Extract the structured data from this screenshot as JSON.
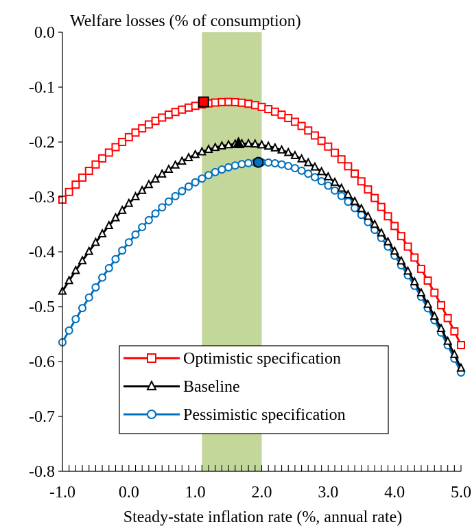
{
  "chart_data": {
    "type": "line",
    "title": "Welfare losses (% of consumption)",
    "xlabel": "Steady-state inflation rate (%, annual rate)",
    "ylabel": "",
    "xlim": [
      -1.0,
      5.0
    ],
    "ylim": [
      -0.8,
      0.0
    ],
    "x_ticks": [
      "-1.0",
      "0.0",
      "1.0",
      "2.0",
      "3.0",
      "4.0",
      "5.0"
    ],
    "y_ticks": [
      "0.0",
      "-0.1",
      "-0.2",
      "-0.3",
      "-0.4",
      "-0.5",
      "-0.6",
      "-0.7",
      "-0.8"
    ],
    "shaded_band": {
      "x_start": 1.1,
      "x_end": 2.0,
      "color": "#c4d79b"
    },
    "legend_position": "center-bottom",
    "grid": false,
    "series": [
      {
        "name": "Optimistic specification",
        "color": "#ff0000",
        "marker": "square",
        "peak": {
          "x": 1.5,
          "y": -0.127
        },
        "endpoints": {
          "x_start": -1.0,
          "y_start": -0.305,
          "x_end": 5.0,
          "y_end": -0.57
        },
        "highlight": {
          "x": 1.125,
          "y": -0.127,
          "fill": "#ff0000"
        }
      },
      {
        "name": "Baseline",
        "color": "#000000",
        "marker": "triangle",
        "peak": {
          "x": 1.75,
          "y": -0.203
        },
        "endpoints": {
          "x_start": -1.0,
          "y_start": -0.472,
          "x_end": 5.0,
          "y_end": -0.612
        },
        "highlight": {
          "x": 1.65,
          "y": -0.203,
          "fill": "#000000"
        }
      },
      {
        "name": "Pessimistic specification",
        "color": "#0070c0",
        "marker": "circle",
        "peak": {
          "x": 2.0,
          "y": -0.237
        },
        "endpoints": {
          "x_start": -1.0,
          "y_start": -0.565,
          "x_end": 5.0,
          "y_end": -0.62
        },
        "highlight": {
          "x": 1.95,
          "y": -0.237,
          "fill": "#0070c0"
        }
      }
    ]
  }
}
